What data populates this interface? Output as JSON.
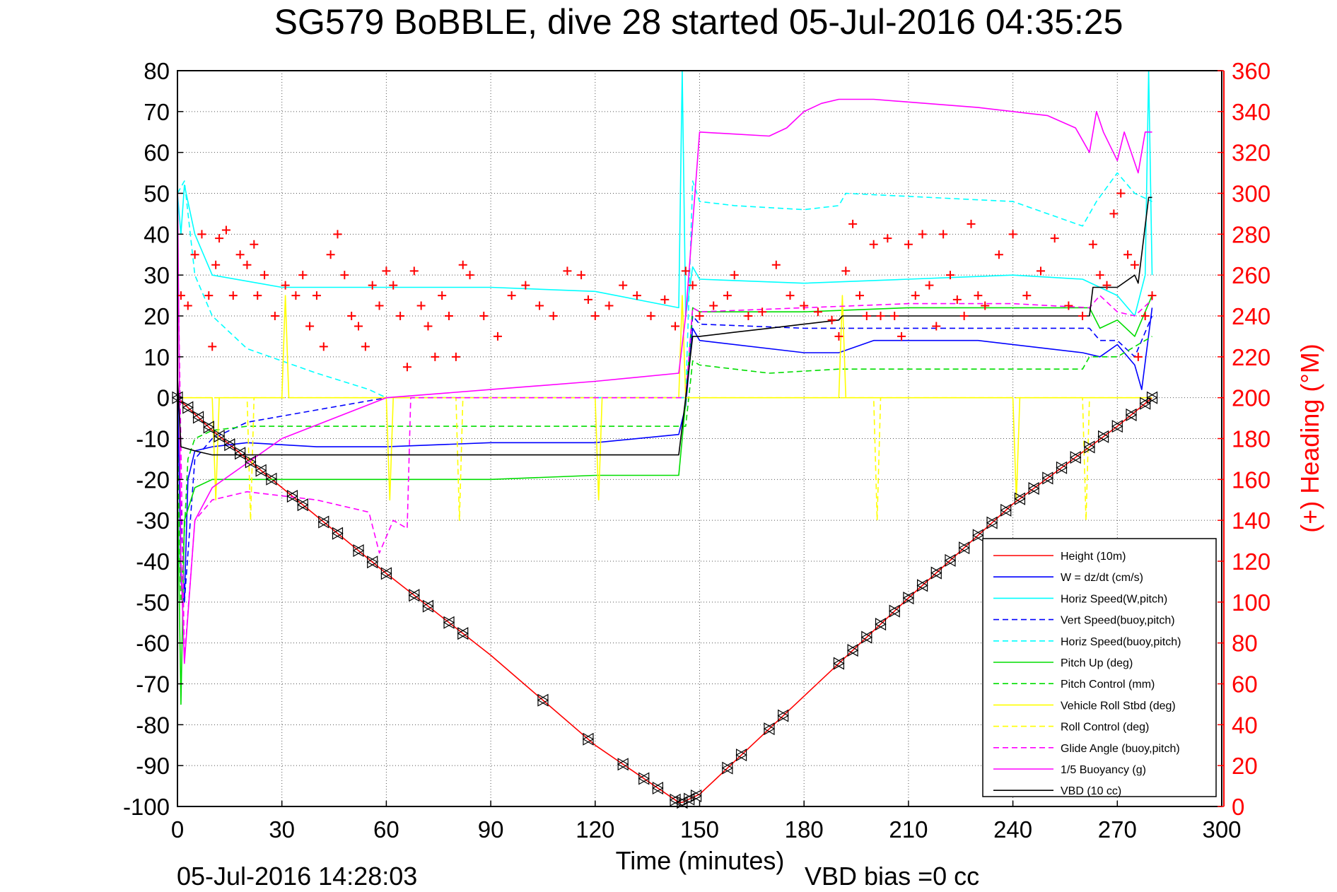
{
  "chart_data": {
    "type": "line",
    "title": "SG579 BoBBLE, dive 28 started 05-Jul-2016 04:35:25",
    "xlabel": "Time (minutes)",
    "ylabel_right": "(+) Heading (°M)",
    "xlim": [
      0,
      300
    ],
    "ylim": [
      -100,
      80
    ],
    "ylim_right": [
      0,
      360
    ],
    "grid": true,
    "xticks": [
      "0",
      "30",
      "60",
      "90",
      "120",
      "150",
      "180",
      "210",
      "240",
      "270",
      "300"
    ],
    "yticks": [
      "80",
      "70",
      "60",
      "50",
      "40",
      "30",
      "20",
      "10",
      "0",
      "-10",
      "-20",
      "-30",
      "-40",
      "-50",
      "-60",
      "-70",
      "-80",
      "-90",
      "-100"
    ],
    "yticks_right": [
      "360",
      "340",
      "320",
      "300",
      "280",
      "260",
      "240",
      "220",
      "200",
      "180",
      "160",
      "140",
      "120",
      "100",
      "80",
      "60",
      "40",
      "20",
      "0"
    ],
    "footer_timestamp": "05-Jul-2016 14:28:03",
    "vbd_bias": "VBD bias =0 cc",
    "legend_position": "lower-right",
    "series": [
      {
        "name": "Height (10m)",
        "color": "#ff0000",
        "dash": "solid",
        "x": [
          0,
          10,
          30,
          60,
          90,
          120,
          144,
          145,
          150,
          180,
          210,
          240,
          270,
          280
        ],
        "y": [
          0,
          -8,
          -22,
          -43,
          -63,
          -85,
          -99,
          -99,
          -97,
          -73,
          -49,
          -26,
          -7,
          0
        ]
      },
      {
        "name": "W = dz/dt (cm/s)",
        "color": "#0000ff",
        "dash": "solid",
        "x": [
          0,
          1,
          2,
          3,
          5,
          10,
          20,
          40,
          60,
          90,
          120,
          144,
          146,
          148,
          150,
          180,
          190,
          200,
          230,
          260,
          265,
          270,
          275,
          277,
          280
        ],
        "y": [
          5,
          -45,
          -50,
          -20,
          -13,
          -12,
          -11,
          -12,
          -12,
          -11,
          -11,
          -9,
          -2,
          17,
          14,
          11,
          11,
          14,
          14,
          11,
          10,
          13,
          8,
          2,
          22
        ]
      },
      {
        "name": "Horiz Speed(W,pitch)",
        "color": "#00ffff",
        "dash": "solid",
        "x": [
          0,
          1,
          2,
          5,
          10,
          30,
          60,
          90,
          120,
          144,
          145,
          146,
          148,
          150,
          180,
          210,
          240,
          260,
          270,
          275,
          278,
          279,
          280
        ],
        "y": [
          50,
          40,
          52,
          40,
          30,
          27,
          27,
          27,
          26,
          22,
          80,
          20,
          32,
          29,
          28,
          29,
          30,
          29,
          25,
          20,
          30,
          80,
          30
        ]
      },
      {
        "name": "Vert Speed(buoy,pitch)",
        "color": "#0000ff",
        "dash": "dashed",
        "x": [
          0,
          2,
          5,
          10,
          20,
          40,
          60,
          66,
          146,
          148,
          150,
          180,
          200,
          240,
          262,
          265,
          270,
          275,
          280
        ],
        "y": [
          -5,
          -50,
          -15,
          -10,
          -6,
          -3,
          0,
          0,
          0,
          20,
          18,
          17,
          17,
          17,
          17,
          14,
          14,
          10,
          20
        ]
      },
      {
        "name": "Horiz Speed(buoy,pitch)",
        "color": "#00ffff",
        "dash": "dashed",
        "x": [
          0,
          2,
          5,
          10,
          20,
          40,
          55,
          60,
          146,
          148,
          150,
          160,
          180,
          190,
          192,
          240,
          260,
          264,
          270,
          275,
          280
        ],
        "y": [
          50,
          53,
          30,
          20,
          12,
          6,
          2,
          0,
          0,
          53,
          48,
          47,
          46,
          47,
          50,
          48,
          42,
          48,
          55,
          50,
          48
        ]
      },
      {
        "name": "Pitch Up (deg)",
        "color": "#00dd00",
        "dash": "solid",
        "x": [
          0,
          1,
          2,
          5,
          10,
          20,
          60,
          90,
          120,
          144,
          146,
          148,
          150,
          180,
          210,
          240,
          262,
          265,
          270,
          275,
          280
        ],
        "y": [
          -20,
          -75,
          -30,
          -22,
          -20,
          -20,
          -20,
          -20,
          -19,
          -19,
          -1,
          22,
          21,
          21,
          22,
          22,
          22,
          17,
          19,
          15,
          25
        ]
      },
      {
        "name": "Pitch Control (mm)",
        "color": "#00dd00",
        "dash": "dashed",
        "x": [
          0,
          1,
          3,
          5,
          10,
          20,
          40,
          60,
          90,
          120,
          144,
          146,
          148,
          150,
          160,
          170,
          190,
          240,
          260,
          262,
          270,
          280
        ],
        "y": [
          -10,
          -50,
          -15,
          -10,
          -8,
          -7,
          -7,
          -7,
          -7,
          -7,
          -7,
          -7,
          9,
          8,
          7,
          6,
          7,
          7,
          7,
          10,
          10,
          15
        ]
      },
      {
        "name": "Vehicle Roll Stbd (deg)",
        "color": "#ffff00",
        "dash": "solid",
        "x": [
          0,
          10,
          11,
          12,
          30,
          31,
          32,
          60,
          61,
          62,
          120,
          121,
          122,
          144,
          145,
          146,
          190,
          191,
          192,
          240,
          241,
          242,
          280
        ],
        "y": [
          0,
          0,
          -25,
          0,
          0,
          25,
          0,
          0,
          -25,
          0,
          0,
          -25,
          0,
          0,
          25,
          0,
          0,
          25,
          0,
          0,
          -25,
          0,
          0
        ]
      },
      {
        "name": "Roll Control (deg)",
        "color": "#ffff00",
        "dash": "dashed",
        "x": [
          0,
          20,
          21,
          22,
          80,
          81,
          82,
          144,
          150,
          200,
          201,
          202,
          260,
          261,
          262,
          280
        ],
        "y": [
          0,
          0,
          -30,
          0,
          0,
          -30,
          0,
          0,
          0,
          0,
          -30,
          0,
          0,
          -30,
          0,
          0
        ]
      },
      {
        "name": "Glide Angle (buoy,pitch)",
        "color": "#ff00ff",
        "dash": "dashed",
        "x": [
          0,
          2,
          5,
          10,
          20,
          40,
          55,
          58,
          62,
          66,
          67,
          146,
          148,
          150,
          180,
          210,
          240,
          262,
          265,
          270,
          275,
          280
        ],
        "y": [
          40,
          -64,
          -30,
          -25,
          -23,
          -25,
          -28,
          -38,
          -30,
          -32,
          0,
          0,
          22,
          21,
          22,
          23,
          23,
          22,
          25,
          21,
          20,
          24
        ]
      },
      {
        "name": "1/5 Buoyancy (g)",
        "color": "#ff00ff",
        "dash": "solid",
        "x": [
          0,
          1,
          2,
          5,
          10,
          30,
          60,
          90,
          120,
          144,
          146,
          150,
          170,
          175,
          180,
          185,
          190,
          200,
          230,
          250,
          258,
          262,
          264,
          266,
          270,
          272,
          274,
          276,
          278,
          280
        ],
        "y": [
          55,
          -40,
          -65,
          -30,
          -22,
          -10,
          0,
          2,
          4,
          6,
          20,
          65,
          64,
          66,
          70,
          72,
          73,
          73,
          71,
          69,
          66,
          60,
          70,
          65,
          58,
          65,
          60,
          55,
          65,
          65
        ]
      },
      {
        "name": "VBD (10 cc)",
        "color": "#000000",
        "dash": "solid",
        "x": [
          0,
          1,
          5,
          10,
          20,
          40,
          60,
          90,
          120,
          144,
          146,
          148,
          150,
          160,
          170,
          180,
          190,
          191,
          240,
          262,
          263,
          270,
          275,
          276,
          279,
          280
        ],
        "y": [
          5,
          -12,
          -13,
          -14,
          -14,
          -14,
          -14,
          -14,
          -14,
          -14,
          0,
          15,
          15,
          16,
          17,
          18,
          19,
          20,
          20,
          20,
          27,
          27,
          30,
          28,
          49,
          49
        ]
      }
    ],
    "heading_points": {
      "name": "(+) Heading (°M)",
      "color": "#ff0000",
      "marker": "+",
      "x": [
        1,
        3,
        5,
        7,
        9,
        10,
        11,
        12,
        14,
        16,
        18,
        20,
        22,
        23,
        25,
        28,
        31,
        34,
        36,
        38,
        40,
        42,
        44,
        46,
        48,
        50,
        52,
        54,
        56,
        58,
        60,
        62,
        64,
        66,
        68,
        70,
        72,
        74,
        76,
        78,
        80,
        82,
        84,
        88,
        92,
        96,
        100,
        104,
        108,
        112,
        116,
        118,
        120,
        124,
        128,
        132,
        136,
        140,
        143,
        146,
        148,
        150,
        154,
        158,
        160,
        164,
        168,
        172,
        176,
        180,
        184,
        188,
        190,
        192,
        194,
        196,
        198,
        200,
        202,
        204,
        206,
        208,
        210,
        212,
        214,
        216,
        218,
        220,
        222,
        224,
        226,
        228,
        230,
        232,
        236,
        240,
        244,
        248,
        252,
        256,
        260,
        263,
        265,
        267,
        269,
        271,
        273,
        275,
        276,
        278,
        280
      ],
      "y": [
        250,
        245,
        270,
        280,
        250,
        225,
        265,
        278,
        282,
        250,
        270,
        265,
        275,
        250,
        260,
        240,
        255,
        250,
        260,
        235,
        250,
        225,
        270,
        280,
        260,
        240,
        235,
        225,
        255,
        245,
        262,
        255,
        240,
        215,
        262,
        245,
        235,
        220,
        250,
        240,
        220,
        265,
        260,
        240,
        230,
        250,
        255,
        245,
        240,
        262,
        260,
        248,
        240,
        245,
        255,
        250,
        240,
        248,
        235,
        262,
        255,
        240,
        245,
        250,
        260,
        240,
        242,
        265,
        250,
        245,
        242,
        238,
        230,
        262,
        285,
        250,
        240,
        275,
        240,
        278,
        240,
        230,
        275,
        250,
        280,
        255,
        235,
        280,
        260,
        248,
        240,
        285,
        250,
        245,
        270,
        280,
        250,
        262,
        278,
        245,
        240,
        275,
        260,
        255,
        290,
        300,
        270,
        265,
        220,
        240,
        250
      ]
    },
    "marker_x": [
      0,
      3,
      6,
      9,
      12,
      15,
      18,
      21,
      24,
      27,
      33,
      36,
      42,
      46,
      52,
      56,
      60,
      68,
      72,
      78,
      82,
      105,
      118,
      128,
      134,
      138,
      143,
      145,
      147,
      149,
      158,
      162,
      170,
      174,
      190,
      194,
      198,
      202,
      206,
      210,
      214,
      218,
      222,
      226,
      230,
      234,
      238,
      242,
      246,
      250,
      254,
      258,
      262,
      266,
      270,
      274,
      278,
      280
    ]
  }
}
